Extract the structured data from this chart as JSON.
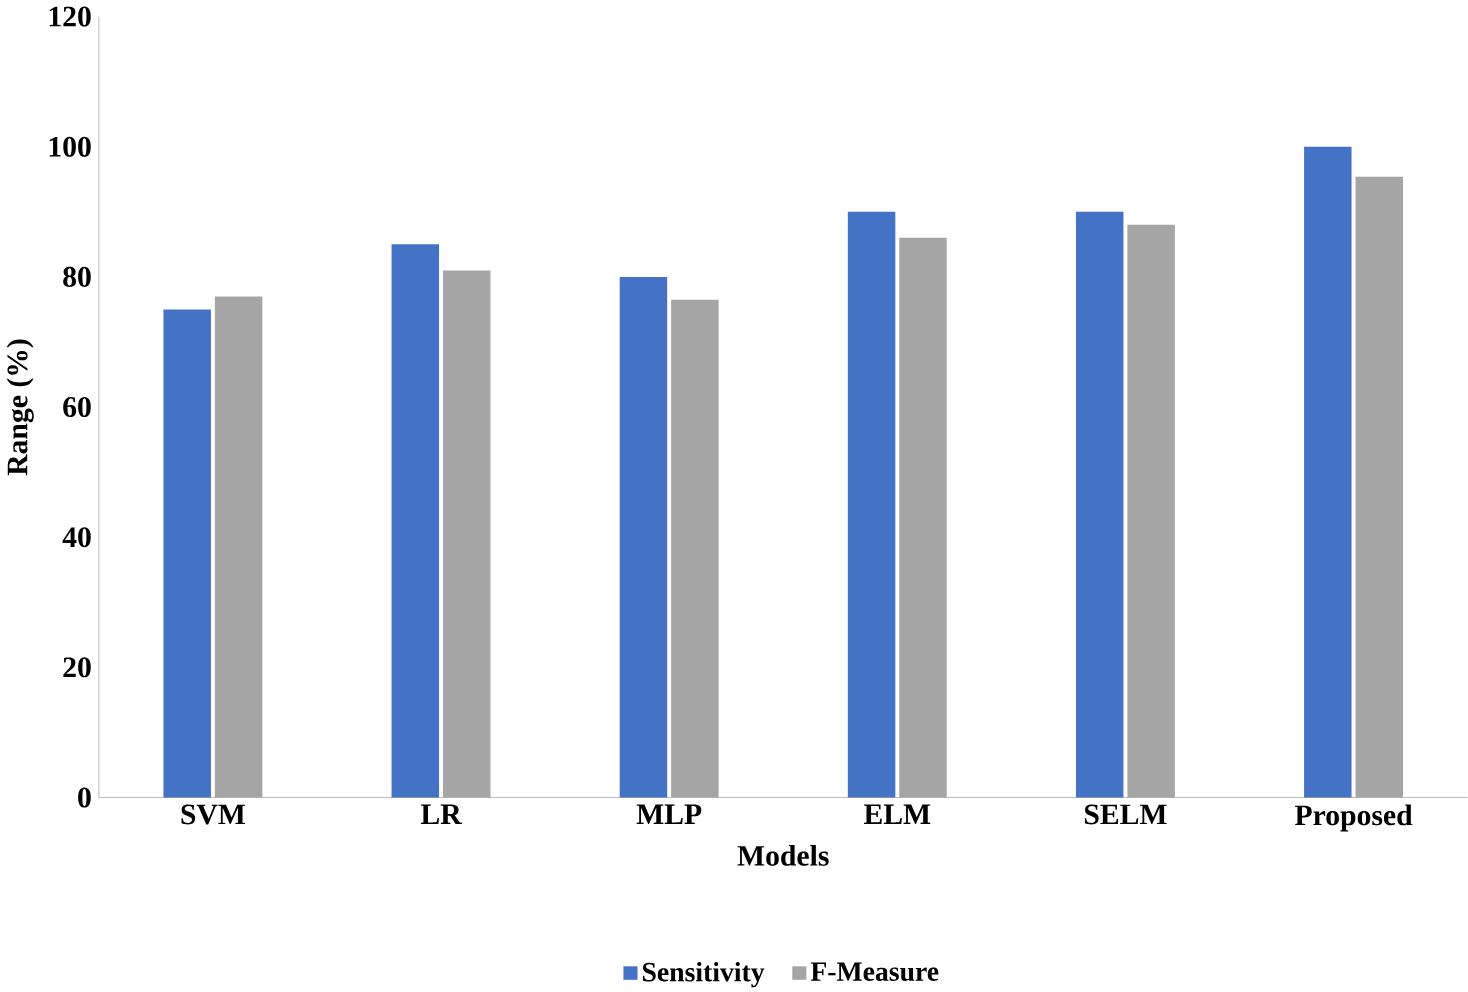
{
  "chart_data": {
    "type": "bar",
    "xlabel": "Models",
    "ylabel": "Range (%)",
    "categories": [
      "SVM",
      "LR",
      "MLP",
      "ELM",
      "SELM",
      "Proposed"
    ],
    "series": [
      {
        "name": "Sensitivity",
        "color": "#4472c4",
        "values": [
          75,
          85,
          80,
          90,
          90,
          100
        ]
      },
      {
        "name": "F-Measure",
        "color": "#a5a5a5",
        "values": [
          77,
          81,
          76.5,
          86,
          88,
          95.4
        ]
      }
    ],
    "ylim": [
      0,
      120
    ],
    "yticks": [
      0,
      20,
      40,
      60,
      80,
      100,
      120
    ],
    "grid": false,
    "legend": "bottom"
  }
}
